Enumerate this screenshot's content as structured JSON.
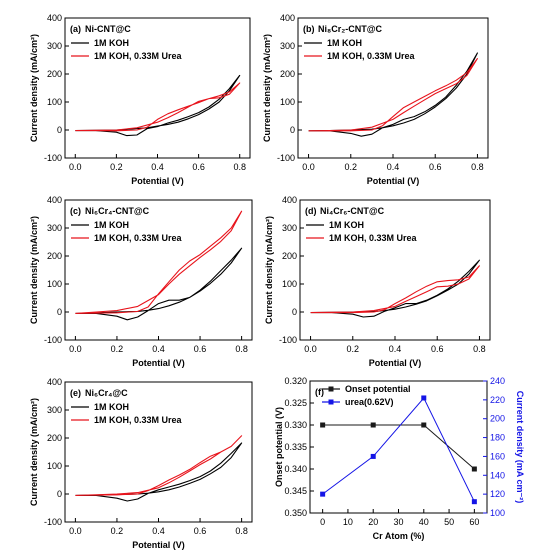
{
  "figure": {
    "colors": {
      "koh": "#000000",
      "urea": "#e8141c",
      "onset": "#1a1a1a",
      "current": "#1414e6"
    }
  },
  "chart_data": [
    {
      "type": "line",
      "panel": "(a)",
      "title": "Ni-CNT@C",
      "xlabel": "Potential (V)",
      "ylabel": "Current density (mA/cm²)",
      "xlim": [
        -0.05,
        0.85
      ],
      "ylim": [
        -100,
        400
      ],
      "xticks": [
        "0.0",
        "0.2",
        "0.4",
        "0.6",
        "0.8"
      ],
      "yticks": [
        "-100",
        "0",
        "100",
        "200",
        "300",
        "400"
      ],
      "legend_position": "top-left",
      "series": [
        {
          "name": "1M KOH",
          "color": "#000000",
          "x": [
            0.0,
            0.1,
            0.2,
            0.25,
            0.3,
            0.35,
            0.4,
            0.45,
            0.5,
            0.55,
            0.6,
            0.65,
            0.7,
            0.75,
            0.8,
            0.75,
            0.7,
            0.65,
            0.6,
            0.55,
            0.5,
            0.45,
            0.4,
            0.35,
            0.3,
            0.25,
            0.2,
            0.1,
            0.0
          ],
          "y": [
            -2,
            -2,
            -8,
            -20,
            -18,
            5,
            12,
            25,
            35,
            48,
            62,
            82,
            110,
            148,
            195,
            140,
            100,
            75,
            55,
            40,
            28,
            20,
            14,
            8,
            5,
            2,
            0,
            -1,
            -2
          ]
        },
        {
          "name": "1M KOH, 0.33M Urea",
          "color": "#e8141c",
          "x": [
            0.0,
            0.1,
            0.2,
            0.3,
            0.35,
            0.4,
            0.45,
            0.5,
            0.55,
            0.6,
            0.65,
            0.7,
            0.75,
            0.8,
            0.75,
            0.7,
            0.65,
            0.6,
            0.55,
            0.5,
            0.45,
            0.4,
            0.3,
            0.2,
            0.1,
            0.0
          ],
          "y": [
            -2,
            -2,
            -3,
            0,
            10,
            38,
            58,
            72,
            85,
            98,
            112,
            122,
            136,
            168,
            128,
            115,
            112,
            102,
            82,
            62,
            44,
            28,
            8,
            0,
            -1,
            -2
          ]
        }
      ]
    },
    {
      "type": "line",
      "panel": "(b)",
      "title": "Ni₈Cr₂-CNT@C",
      "xlabel": "Potential (V)",
      "ylabel": "Current density (mA/cm²)",
      "xlim": [
        -0.05,
        0.85
      ],
      "ylim": [
        -100,
        400
      ],
      "xticks": [
        "0.0",
        "0.2",
        "0.4",
        "0.6",
        "0.8"
      ],
      "yticks": [
        "-100",
        "0",
        "100",
        "200",
        "300",
        "400"
      ],
      "legend_position": "top-left",
      "series": [
        {
          "name": "1M KOH",
          "color": "#000000",
          "x": [
            0.0,
            0.1,
            0.2,
            0.25,
            0.3,
            0.35,
            0.4,
            0.45,
            0.5,
            0.55,
            0.6,
            0.65,
            0.7,
            0.75,
            0.8,
            0.75,
            0.7,
            0.65,
            0.6,
            0.55,
            0.5,
            0.45,
            0.4,
            0.35,
            0.3,
            0.2,
            0.1,
            0.0
          ],
          "y": [
            -3,
            -3,
            -12,
            -22,
            -15,
            8,
            20,
            38,
            48,
            65,
            88,
            118,
            160,
            210,
            275,
            200,
            150,
            112,
            82,
            58,
            38,
            25,
            15,
            8,
            3,
            0,
            -2,
            -3
          ]
        },
        {
          "name": "1M KOH, 0.33M Urea",
          "color": "#e8141c",
          "x": [
            0.0,
            0.1,
            0.2,
            0.3,
            0.35,
            0.4,
            0.45,
            0.5,
            0.55,
            0.6,
            0.65,
            0.7,
            0.75,
            0.8,
            0.75,
            0.7,
            0.65,
            0.6,
            0.55,
            0.5,
            0.45,
            0.4,
            0.3,
            0.2,
            0.1,
            0.0
          ],
          "y": [
            -3,
            -3,
            -3,
            0,
            15,
            48,
            80,
            100,
            120,
            140,
            158,
            178,
            205,
            255,
            195,
            165,
            148,
            130,
            108,
            85,
            62,
            38,
            10,
            0,
            -2,
            -3
          ]
        }
      ]
    },
    {
      "type": "line",
      "panel": "(c)",
      "title": "Ni₆Cr₄-CNT@C",
      "xlabel": "Potential (V)",
      "ylabel": "Current density (mA/cm²)",
      "xlim": [
        -0.05,
        0.85
      ],
      "ylim": [
        -100,
        400
      ],
      "xticks": [
        "0.0",
        "0.2",
        "0.4",
        "0.6",
        "0.8"
      ],
      "yticks": [
        "-100",
        "0",
        "100",
        "200",
        "300",
        "400"
      ],
      "legend_position": "top-left",
      "series": [
        {
          "name": "1M KOH",
          "color": "#000000",
          "x": [
            0.0,
            0.1,
            0.2,
            0.25,
            0.3,
            0.35,
            0.4,
            0.45,
            0.5,
            0.55,
            0.6,
            0.65,
            0.7,
            0.75,
            0.8,
            0.75,
            0.7,
            0.65,
            0.6,
            0.55,
            0.5,
            0.45,
            0.4,
            0.35,
            0.3,
            0.2,
            0.1,
            0.0
          ],
          "y": [
            -5,
            -5,
            -15,
            -28,
            -18,
            5,
            30,
            42,
            42,
            52,
            78,
            110,
            148,
            185,
            228,
            175,
            135,
            102,
            75,
            52,
            35,
            22,
            12,
            6,
            2,
            0,
            -3,
            -5
          ]
        },
        {
          "name": "1M KOH, 0.33M Urea",
          "color": "#e8141c",
          "x": [
            0.0,
            0.1,
            0.2,
            0.3,
            0.35,
            0.4,
            0.45,
            0.5,
            0.55,
            0.6,
            0.65,
            0.7,
            0.75,
            0.8,
            0.75,
            0.7,
            0.65,
            0.6,
            0.55,
            0.5,
            0.45,
            0.4,
            0.3,
            0.2,
            0.1,
            0.0
          ],
          "y": [
            -5,
            -4,
            -3,
            2,
            18,
            65,
            108,
            150,
            182,
            205,
            235,
            265,
            300,
            360,
            290,
            252,
            222,
            195,
            165,
            135,
            100,
            62,
            20,
            5,
            0,
            -5
          ]
        }
      ]
    },
    {
      "type": "line",
      "panel": "(d)",
      "title": "Ni₄Cr₆-CNT@C",
      "xlabel": "Potential (V)",
      "ylabel": "Current density (mA/cm²)",
      "xlim": [
        -0.05,
        0.85
      ],
      "ylim": [
        -100,
        400
      ],
      "xticks": [
        "0.0",
        "0.2",
        "0.4",
        "0.6",
        "0.8"
      ],
      "yticks": [
        "-100",
        "0",
        "100",
        "200",
        "300",
        "400"
      ],
      "legend_position": "top-left",
      "series": [
        {
          "name": "1M KOH",
          "color": "#000000",
          "x": [
            0.0,
            0.1,
            0.2,
            0.25,
            0.3,
            0.35,
            0.4,
            0.45,
            0.5,
            0.55,
            0.6,
            0.65,
            0.7,
            0.75,
            0.8,
            0.75,
            0.7,
            0.65,
            0.6,
            0.55,
            0.5,
            0.45,
            0.4,
            0.35,
            0.3,
            0.2,
            0.1,
            0.0
          ],
          "y": [
            -2,
            -2,
            -8,
            -18,
            -15,
            2,
            15,
            30,
            30,
            42,
            60,
            82,
            110,
            145,
            185,
            135,
            100,
            78,
            58,
            40,
            28,
            18,
            10,
            5,
            2,
            0,
            -1,
            -2
          ]
        },
        {
          "name": "1M KOH, 0.33M Urea",
          "color": "#e8141c",
          "x": [
            0.0,
            0.1,
            0.2,
            0.3,
            0.35,
            0.4,
            0.45,
            0.5,
            0.55,
            0.6,
            0.65,
            0.7,
            0.75,
            0.8,
            0.75,
            0.7,
            0.65,
            0.6,
            0.55,
            0.5,
            0.45,
            0.4,
            0.3,
            0.2,
            0.1,
            0.0
          ],
          "y": [
            -2,
            -2,
            -2,
            0,
            8,
            30,
            50,
            72,
            92,
            108,
            112,
            115,
            125,
            165,
            118,
            100,
            92,
            90,
            72,
            55,
            38,
            20,
            5,
            0,
            -1,
            -2
          ]
        }
      ]
    },
    {
      "type": "line",
      "panel": "(e)",
      "title": "Ni₆Cr₄@C",
      "xlabel": "Potential (V)",
      "ylabel": "Current density (mA/cm²)",
      "xlim": [
        -0.05,
        0.85
      ],
      "ylim": [
        -100,
        400
      ],
      "xticks": [
        "0.0",
        "0.2",
        "0.4",
        "0.6",
        "0.8"
      ],
      "yticks": [
        "-100",
        "0",
        "100",
        "200",
        "300",
        "400"
      ],
      "legend_position": "top-left",
      "series": [
        {
          "name": "1M KOH",
          "color": "#000000",
          "x": [
            0.0,
            0.1,
            0.2,
            0.25,
            0.3,
            0.35,
            0.4,
            0.45,
            0.5,
            0.55,
            0.6,
            0.65,
            0.7,
            0.75,
            0.8,
            0.75,
            0.7,
            0.65,
            0.6,
            0.55,
            0.5,
            0.45,
            0.4,
            0.35,
            0.3,
            0.2,
            0.1,
            0.0
          ],
          "y": [
            -5,
            -5,
            -15,
            -25,
            -18,
            2,
            15,
            25,
            35,
            48,
            62,
            82,
            110,
            145,
            182,
            130,
            95,
            72,
            52,
            38,
            25,
            15,
            8,
            3,
            0,
            -2,
            -4,
            -5
          ]
        },
        {
          "name": "1M KOH, 0.33M Urea",
          "color": "#e8141c",
          "x": [
            0.0,
            0.1,
            0.2,
            0.3,
            0.35,
            0.4,
            0.45,
            0.5,
            0.55,
            0.6,
            0.65,
            0.7,
            0.75,
            0.8,
            0.75,
            0.7,
            0.65,
            0.6,
            0.55,
            0.5,
            0.45,
            0.4,
            0.3,
            0.2,
            0.1,
            0.0
          ],
          "y": [
            -5,
            -4,
            -3,
            0,
            12,
            30,
            50,
            68,
            88,
            112,
            135,
            150,
            170,
            208,
            170,
            150,
            125,
            105,
            82,
            60,
            40,
            22,
            5,
            0,
            -3,
            -5
          ]
        }
      ]
    },
    {
      "type": "line",
      "panel": "(f)",
      "xlabel": "Cr Atom (%)",
      "ylabel": "Onset potential (V)",
      "ylabel_right": "Current density (mA cm⁻²)",
      "xlim": [
        -5,
        65
      ],
      "ylim_left": [
        0.35,
        0.32
      ],
      "ylim_right": [
        100,
        240
      ],
      "xticks": [
        "0",
        "10",
        "20",
        "30",
        "40",
        "50",
        "60"
      ],
      "yticks_left": [
        "0.320",
        "0.325",
        "0.330",
        "0.335",
        "0.340",
        "0.345",
        "0.350"
      ],
      "yticks_right": [
        "100",
        "120",
        "140",
        "160",
        "180",
        "200",
        "220",
        "240"
      ],
      "legend_position": "top-left",
      "series": [
        {
          "name": "Onset potential",
          "axis": "left",
          "color": "#1a1a1a",
          "x": [
            0,
            20,
            40,
            60
          ],
          "y": [
            0.33,
            0.33,
            0.33,
            0.34
          ]
        },
        {
          "name": "urea(0.62V)",
          "axis": "right",
          "color": "#1414e6",
          "x": [
            0,
            20,
            40,
            60
          ],
          "y": [
            120,
            160,
            222,
            112
          ]
        }
      ]
    }
  ]
}
